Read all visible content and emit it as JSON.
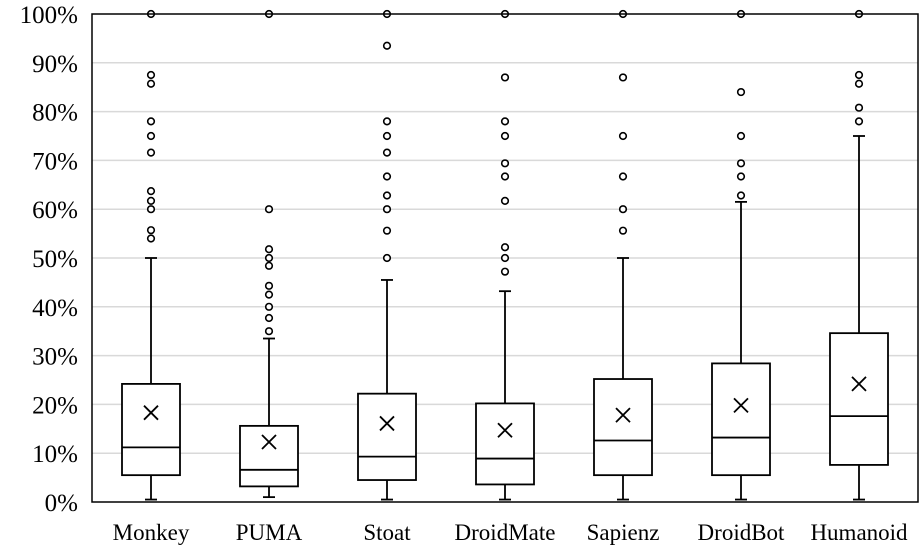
{
  "chart_data": {
    "type": "box",
    "ylim": [
      0,
      100
    ],
    "y_unit": "%",
    "yticks": [
      "0%",
      "10%",
      "20%",
      "30%",
      "40%",
      "50%",
      "60%",
      "70%",
      "80%",
      "90%",
      "100%"
    ],
    "grid": true,
    "categories": [
      "Monkey",
      "PUMA",
      "Stoat",
      "DroidMate",
      "Sapienz",
      "DroidBot",
      "Humanoid"
    ],
    "boxes": [
      {
        "min": 0.5,
        "q1": 5.5,
        "median": 11.2,
        "q3": 24.2,
        "max": 50.0,
        "mean": 18.3,
        "outliers": [
          54.0,
          55.7,
          60.0,
          61.7,
          63.7,
          71.6,
          75.0,
          78.0,
          85.7,
          87.5,
          100.0
        ]
      },
      {
        "min": 1.0,
        "q1": 3.2,
        "median": 6.6,
        "q3": 15.6,
        "max": 33.5,
        "mean": 12.3,
        "outliers": [
          35.0,
          37.7,
          40.0,
          42.5,
          44.3,
          48.4,
          50.0,
          51.8,
          60.0,
          100.0
        ]
      },
      {
        "min": 0.5,
        "q1": 4.5,
        "median": 9.3,
        "q3": 22.2,
        "max": 45.5,
        "mean": 16.1,
        "outliers": [
          50.0,
          55.6,
          60.0,
          62.8,
          66.7,
          71.6,
          75.0,
          78.0,
          93.5,
          100.0
        ]
      },
      {
        "min": 0.5,
        "q1": 3.6,
        "median": 8.9,
        "q3": 20.2,
        "max": 43.2,
        "mean": 14.7,
        "outliers": [
          47.2,
          50.0,
          52.2,
          61.7,
          66.7,
          69.4,
          75.0,
          78.0,
          87.0,
          100.0
        ]
      },
      {
        "min": 0.5,
        "q1": 5.5,
        "median": 12.6,
        "q3": 25.2,
        "max": 50.0,
        "mean": 17.8,
        "outliers": [
          55.6,
          60.0,
          66.7,
          75.0,
          87.0,
          100.0
        ]
      },
      {
        "min": 0.5,
        "q1": 5.5,
        "median": 13.2,
        "q3": 28.4,
        "max": 61.5,
        "mean": 19.8,
        "outliers": [
          62.8,
          66.7,
          69.4,
          75.0,
          84.0,
          100.0
        ]
      },
      {
        "min": 0.5,
        "q1": 7.6,
        "median": 17.6,
        "q3": 34.6,
        "max": 75.0,
        "mean": 24.2,
        "outliers": [
          78.0,
          80.8,
          85.7,
          87.5,
          100.0
        ]
      }
    ]
  }
}
